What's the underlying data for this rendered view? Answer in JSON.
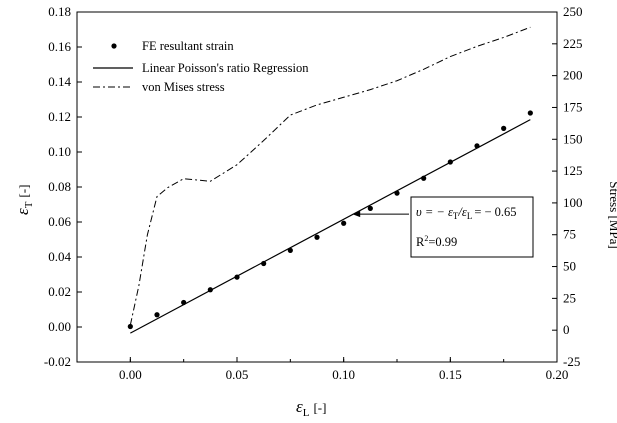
{
  "chart_data": {
    "type": "scatter",
    "title": "",
    "xlabel": {
      "symbol": "ε",
      "sub": "L",
      "unit": "[-]"
    },
    "ylabel": {
      "symbol": "ε",
      "sub": "T",
      "unit": "[-]"
    },
    "y2label": "Stress [MPa]",
    "xlim": [
      -0.025,
      0.2
    ],
    "ylim": [
      -0.02,
      0.18
    ],
    "y2lim": [
      -25,
      250
    ],
    "xticks": [
      "0.00",
      "0.05",
      "0.10",
      "0.15",
      "0.20"
    ],
    "xtick_values": [
      0,
      0.05,
      0.1,
      0.15,
      0.2
    ],
    "yticks": [
      "-0.02",
      "0.00",
      "0.02",
      "0.04",
      "0.06",
      "0.08",
      "0.10",
      "0.12",
      "0.14",
      "0.16",
      "0.18"
    ],
    "ytick_values": [
      -0.02,
      0,
      0.02,
      0.04,
      0.06,
      0.08,
      0.1,
      0.12,
      0.14,
      0.16,
      0.18
    ],
    "y2ticks": [
      "-25",
      "0",
      "25",
      "50",
      "75",
      "100",
      "125",
      "150",
      "175",
      "200",
      "225",
      "250"
    ],
    "y2tick_values": [
      -25,
      0,
      25,
      50,
      75,
      100,
      125,
      150,
      175,
      200,
      225,
      250
    ],
    "legend_position": "top-left",
    "grid": false,
    "series": [
      {
        "name": "FE resultant strain",
        "kind": "points",
        "axis": "left",
        "x": [
          0,
          0.0125,
          0.025,
          0.0375,
          0.05,
          0.0625,
          0.075,
          0.0875,
          0.1,
          0.1125,
          0.125,
          0.1375,
          0.15,
          0.1625,
          0.175,
          0.1875
        ],
        "y": [
          0.0003,
          0.007,
          0.014,
          0.0213,
          0.0285,
          0.0363,
          0.0438,
          0.0513,
          0.0593,
          0.0678,
          0.0765,
          0.085,
          0.0943,
          0.1035,
          0.1135,
          0.1223
        ]
      },
      {
        "name": "Linear Poisson's ratio Regression",
        "kind": "line",
        "axis": "left",
        "x": [
          0,
          0.1875
        ],
        "y": [
          -0.0035,
          0.1185
        ]
      },
      {
        "name": "von Mises stress",
        "kind": "dashdot",
        "axis": "right",
        "x": [
          0,
          0.004,
          0.008,
          0.0125,
          0.0175,
          0.025,
          0.0375,
          0.05,
          0.0625,
          0.075,
          0.0875,
          0.1,
          0.1125,
          0.125,
          0.1375,
          0.15,
          0.1625,
          0.175,
          0.1875
        ],
        "y": [
          4,
          35,
          75,
          105,
          112,
          119,
          117,
          130,
          149,
          169,
          177,
          183,
          189,
          196,
          205,
          215,
          223,
          230,
          238
        ]
      }
    ],
    "annotation": {
      "line1": "υ = − ε",
      "sub1": "T",
      "line1b": "/ε",
      "sub2": "L",
      "line1c": "= − 0.65",
      "r2": "R",
      "r2sup": "2",
      "r2val": "=0.99",
      "arrow_target": [
        0.104,
        0.0645
      ]
    }
  }
}
